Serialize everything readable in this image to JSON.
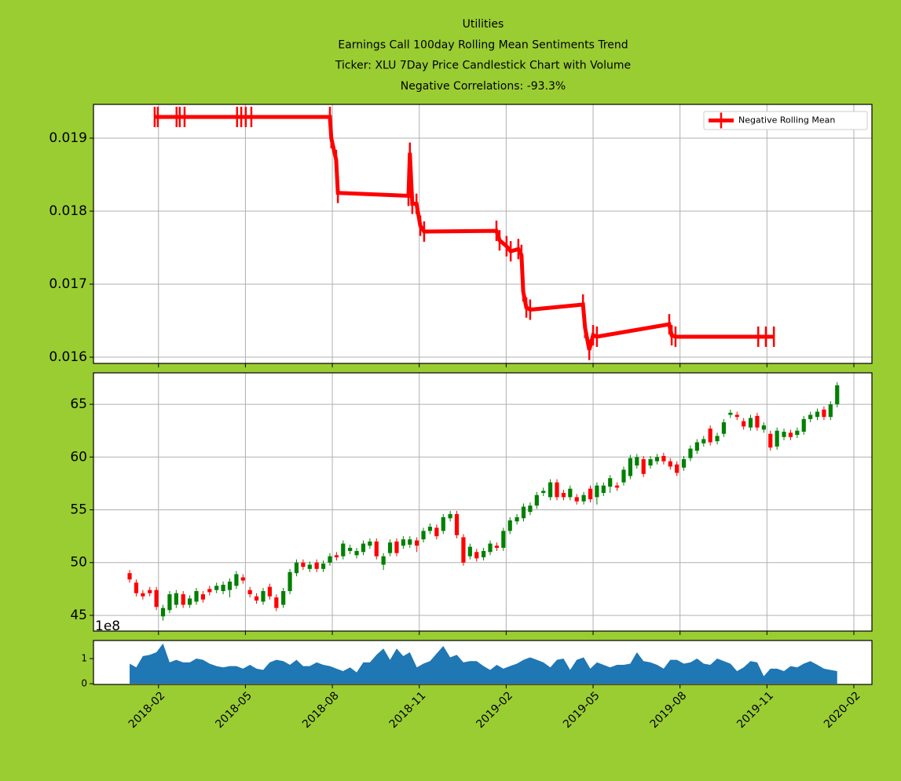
{
  "chart_data": [
    {
      "type": "line",
      "title": [
        "Utilities",
        "Earnings Call 100day Rolling Mean Sentiments Trend",
        "Ticker: XLU      7Day Price Candlestick Chart with Volume",
        "Negative Correlations: -93.3%"
      ],
      "series": [
        {
          "name": "Negative Rolling Mean",
          "color": "red",
          "x": [
            2018.072,
            2018.081,
            2018.135,
            2018.144,
            2018.158,
            2018.309,
            2018.321,
            2018.334,
            2018.35,
            2018.576,
            2018.58,
            2018.594,
            2018.599,
            2018.802,
            2018.806,
            2018.813,
            2018.825,
            2018.836,
            2018.847,
            2019.055,
            2019.064,
            2019.084,
            2019.096,
            2019.118,
            2019.127,
            2019.132,
            2019.141,
            2019.152,
            2019.304,
            2019.31,
            2019.322,
            2019.333,
            2019.344,
            2019.552,
            2019.559,
            2019.57,
            2019.808,
            2019.83,
            2019.853
          ],
          "values": [
            0.01929,
            0.01929,
            0.01929,
            0.01929,
            0.01929,
            0.01929,
            0.01929,
            0.01929,
            0.01929,
            0.01929,
            0.019,
            0.0187,
            0.01825,
            0.01821,
            0.0188,
            0.0181,
            0.0181,
            0.0178,
            0.01772,
            0.01773,
            0.0176,
            0.01752,
            0.01745,
            0.01748,
            0.0174,
            0.0169,
            0.01668,
            0.01665,
            0.01672,
            0.0164,
            0.0161,
            0.0163,
            0.01628,
            0.01645,
            0.0163,
            0.01628,
            0.01628,
            0.01628,
            0.01628
          ]
        }
      ],
      "ylim": [
        0.015914,
        0.019462
      ],
      "yticks": [
        0.016,
        0.017,
        0.018,
        0.019
      ],
      "grid": true,
      "legend": "upper right"
    },
    {
      "type": "candlestick",
      "x": [
        2018.0,
        2018.019,
        2018.038,
        2018.058,
        2018.077,
        2018.096,
        2018.115,
        2018.134,
        2018.154,
        2018.173,
        2018.192,
        2018.211,
        2018.23,
        2018.25,
        2018.269,
        2018.288,
        2018.307,
        2018.326,
        2018.346,
        2018.365,
        2018.384,
        2018.403,
        2018.422,
        2018.442,
        2018.461,
        2018.48,
        2018.499,
        2018.518,
        2018.538,
        2018.557,
        2018.576,
        2018.595,
        2018.614,
        2018.634,
        2018.653,
        2018.672,
        2018.691,
        2018.71,
        2018.73,
        2018.749,
        2018.768,
        2018.787,
        2018.806,
        2018.826,
        2018.845,
        2018.864,
        2018.883,
        2018.902,
        2018.922,
        2018.941,
        2018.96,
        2018.979,
        2018.998,
        2019.018,
        2019.037,
        2019.056,
        2019.075,
        2019.094,
        2019.114,
        2019.133,
        2019.152,
        2019.171,
        2019.19,
        2019.21,
        2019.229,
        2019.248,
        2019.267,
        2019.286,
        2019.306,
        2019.325,
        2019.344,
        2019.363,
        2019.382,
        2019.402,
        2019.421,
        2019.44,
        2019.459,
        2019.478,
        2019.498,
        2019.517,
        2019.536,
        2019.555,
        2019.574,
        2019.594,
        2019.613,
        2019.632,
        2019.651,
        2019.67,
        2019.69,
        2019.709,
        2019.728,
        2019.747,
        2019.766,
        2019.786,
        2019.805,
        2019.824,
        2019.843,
        2019.862,
        2019.882,
        2019.901,
        2019.92,
        2019.939,
        2019.958,
        2019.978,
        2019.997,
        2020.016,
        2020.035
      ],
      "open": [
        49,
        48.1,
        47.1,
        47.4,
        47.4,
        44.9,
        45.5,
        46,
        47,
        46,
        46.3,
        47,
        47.5,
        47.4,
        47.3,
        47.4,
        47.8,
        48.6,
        47.4,
        46.8,
        46.3,
        47.7,
        46.7,
        46,
        47.3,
        49,
        50,
        49.4,
        50,
        49.4,
        50,
        50.7,
        50.6,
        51.1,
        50.7,
        51,
        51.6,
        52,
        49.8,
        50.9,
        52,
        51.6,
        51.7,
        52.1,
        52.2,
        53,
        53.3,
        53,
        54.2,
        54.6,
        52.4,
        50.6,
        51,
        50.5,
        51,
        51.6,
        51.4,
        53,
        53.9,
        54.2,
        54.8,
        55.4,
        56.6,
        56.2,
        57.6,
        56.6,
        56.2,
        56.2,
        55.8,
        57,
        56.2,
        56.6,
        57.2,
        57.3,
        57.6,
        58.2,
        59.2,
        59.8,
        59.2,
        59.6,
        60.1,
        59.6,
        59.3,
        59,
        59.9,
        60.6,
        61.3,
        62.7,
        61.5,
        62.2,
        64,
        64,
        63.4,
        62.8,
        63.9,
        62.6,
        62.2,
        61,
        61.9,
        62.3,
        62.1,
        62.4,
        63.6,
        63.8,
        64.5,
        63.8,
        65
      ],
      "high": [
        49.3,
        48.4,
        47.4,
        47.7,
        47.7,
        46.0,
        47.3,
        47.4,
        47.3,
        46.9,
        47.6,
        47.3,
        47.8,
        48.1,
        48.2,
        48.5,
        49.2,
        48.9,
        47.7,
        47.1,
        47.6,
        48.0,
        47.0,
        47.6,
        49.4,
        50.3,
        50.3,
        50.1,
        50.3,
        50.2,
        50.9,
        51.0,
        52.1,
        51.7,
        51.4,
        52.1,
        52.3,
        52.3,
        50.9,
        52.2,
        52.3,
        52.5,
        52.5,
        52.4,
        53.3,
        53.7,
        53.6,
        54.6,
        54.9,
        54.9,
        52.7,
        51.8,
        51.3,
        51.4,
        52.1,
        51.9,
        53.3,
        54.3,
        54.6,
        55.6,
        55.7,
        56.7,
        57.1,
        57.9,
        57.9,
        56.9,
        57.3,
        56.5,
        56.7,
        57.3,
        57.6,
        57.6,
        58.3,
        57.6,
        59.1,
        60.2,
        60.3,
        60.1,
        60.1,
        60.3,
        60.4,
        59.9,
        59.6,
        60.1,
        61.1,
        61.7,
        62.0,
        63.0,
        62.3,
        63.6,
        64.5,
        64.3,
        63.7,
        64.0,
        64.2,
        63.3,
        62.5,
        62.8,
        62.7,
        62.6,
        62.8,
        63.9,
        64.3,
        64.6,
        64.8,
        65.3,
        67.1
      ],
      "low": [
        48.1,
        46.8,
        46.5,
        46.8,
        45.5,
        44.5,
        45.2,
        45.7,
        45.7,
        45.7,
        46.0,
        46.2,
        46.9,
        47.1,
        47.0,
        46.7,
        47.5,
        48.0,
        46.7,
        46.1,
        46.0,
        46.5,
        45.4,
        45.7,
        47.0,
        48.7,
        49.3,
        49.1,
        49.1,
        49.1,
        49.7,
        50.2,
        50.3,
        50.8,
        50.4,
        50.7,
        51.3,
        50.3,
        49.3,
        50.6,
        50.6,
        51.3,
        51.4,
        51.0,
        51.9,
        52.7,
        52.2,
        52.7,
        53.9,
        52.3,
        49.7,
        50.3,
        50.1,
        50.2,
        50.7,
        51.1,
        51.1,
        52.7,
        53.6,
        53.9,
        54.5,
        55.1,
        56.3,
        55.9,
        55.9,
        55.9,
        55.9,
        55.5,
        55.5,
        55.7,
        55.5,
        56.3,
        56.6,
        56.8,
        57.3,
        57.9,
        58.9,
        58.1,
        58.9,
        59.3,
        59.3,
        58.8,
        58.2,
        58.7,
        59.6,
        60.3,
        61.0,
        61.1,
        61.2,
        61.9,
        63.7,
        63.5,
        62.6,
        62.5,
        62.5,
        62.3,
        60.6,
        60.7,
        61.6,
        61.6,
        61.8,
        62.1,
        63.3,
        63.5,
        63.5,
        63.5,
        64.7
      ],
      "close": [
        48.4,
        47.1,
        46.8,
        47.1,
        45.8,
        45.7,
        47,
        47.1,
        46,
        46.6,
        47.3,
        46.5,
        47.2,
        47.8,
        47.9,
        48.2,
        48.9,
        48.3,
        47,
        46.4,
        47.3,
        46.8,
        45.7,
        47.3,
        49.1,
        50,
        49.6,
        49.8,
        49.4,
        49.9,
        50.6,
        50.5,
        51.8,
        51.4,
        51.1,
        51.8,
        52,
        50.6,
        50.6,
        51.9,
        50.9,
        52.2,
        52.2,
        51.6,
        53,
        53.4,
        52.5,
        54.3,
        54.6,
        52.6,
        50,
        51.5,
        50.4,
        51.1,
        51.8,
        51.4,
        53,
        54,
        54.3,
        55.3,
        55.4,
        56.4,
        56.8,
        57.6,
        56.2,
        56.2,
        57,
        55.8,
        56.4,
        56,
        57.3,
        57.3,
        58,
        57.1,
        58.8,
        59.9,
        60,
        58.4,
        59.8,
        60,
        59.6,
        59.1,
        58.5,
        59.8,
        60.8,
        61.4,
        61.7,
        61.4,
        62,
        63.3,
        64.2,
        63.8,
        62.9,
        63.7,
        62.8,
        63,
        60.9,
        62.5,
        62.4,
        61.9,
        62.5,
        63.6,
        64,
        64.3,
        63.8,
        65,
        66.8
      ],
      "up_color": "green",
      "down_color": "red",
      "ylim": [
        43.51,
        67.98
      ],
      "yticks": [
        45,
        50,
        55,
        60,
        65
      ],
      "grid": true
    },
    {
      "type": "area",
      "x": [
        2018.0,
        2018.019,
        2018.038,
        2018.058,
        2018.077,
        2018.096,
        2018.115,
        2018.134,
        2018.154,
        2018.173,
        2018.192,
        2018.211,
        2018.23,
        2018.25,
        2018.269,
        2018.288,
        2018.307,
        2018.326,
        2018.346,
        2018.365,
        2018.384,
        2018.403,
        2018.422,
        2018.442,
        2018.461,
        2018.48,
        2018.499,
        2018.518,
        2018.538,
        2018.557,
        2018.576,
        2018.595,
        2018.614,
        2018.634,
        2018.653,
        2018.672,
        2018.691,
        2018.71,
        2018.73,
        2018.749,
        2018.768,
        2018.787,
        2018.806,
        2018.826,
        2018.845,
        2018.864,
        2018.883,
        2018.902,
        2018.922,
        2018.941,
        2018.96,
        2018.979,
        2018.998,
        2019.018,
        2019.037,
        2019.056,
        2019.075,
        2019.094,
        2019.114,
        2019.133,
        2019.152,
        2019.171,
        2019.19,
        2019.21,
        2019.229,
        2019.248,
        2019.267,
        2019.286,
        2019.306,
        2019.325,
        2019.344,
        2019.363,
        2019.382,
        2019.402,
        2019.421,
        2019.44,
        2019.459,
        2019.478,
        2019.498,
        2019.517,
        2019.536,
        2019.555,
        2019.574,
        2019.594,
        2019.613,
        2019.632,
        2019.651,
        2019.67,
        2019.69,
        2019.709,
        2019.728,
        2019.747,
        2019.766,
        2019.786,
        2019.805,
        2019.824,
        2019.843,
        2019.862,
        2019.882,
        2019.901,
        2019.92,
        2019.939,
        2019.958,
        2019.978,
        2019.997,
        2020.016,
        2020.035
      ],
      "values": [
        0.8,
        0.65,
        1.1,
        1.15,
        1.25,
        1.6,
        0.85,
        0.95,
        0.85,
        0.85,
        1.0,
        0.95,
        0.8,
        0.7,
        0.65,
        0.7,
        0.7,
        0.6,
        0.75,
        0.6,
        0.55,
        0.85,
        0.95,
        0.9,
        0.75,
        0.95,
        0.7,
        0.7,
        0.85,
        0.75,
        0.7,
        0.6,
        0.5,
        0.65,
        0.45,
        0.85,
        0.85,
        1.15,
        1.4,
        0.95,
        1.4,
        1.1,
        1.25,
        0.65,
        0.8,
        0.9,
        1.2,
        1.5,
        1.05,
        1.15,
        0.85,
        0.9,
        0.9,
        0.7,
        0.55,
        0.75,
        0.6,
        0.7,
        0.8,
        0.95,
        1.05,
        0.95,
        0.85,
        0.65,
        0.95,
        1.0,
        0.55,
        0.95,
        1.05,
        0.6,
        0.85,
        0.75,
        0.65,
        0.75,
        0.75,
        0.8,
        1.25,
        0.9,
        0.85,
        0.75,
        0.6,
        0.95,
        0.95,
        0.8,
        0.85,
        1.0,
        0.8,
        0.75,
        1.0,
        0.9,
        0.8,
        0.5,
        0.65,
        0.9,
        0.85,
        0.3,
        0.6,
        0.6,
        0.5,
        0.7,
        0.65,
        0.8,
        0.9,
        0.75,
        0.6,
        0.55,
        0.5
      ],
      "color": "#1f77b4",
      "offset_label": "1e8",
      "ylim": [
        -0.03,
        1.72
      ],
      "yticks": [
        0,
        1
      ],
      "grid": false,
      "xlim": [
        2017.896,
        2020.135
      ],
      "xticks": [
        {
          "value": 2018.083,
          "label": "2018-02"
        },
        {
          "value": 2018.333,
          "label": "2018-05"
        },
        {
          "value": 2018.583,
          "label": "2018-08"
        },
        {
          "value": 2018.833,
          "label": "2018-11"
        },
        {
          "value": 2019.083,
          "label": "2019-02"
        },
        {
          "value": 2019.333,
          "label": "2019-05"
        },
        {
          "value": 2019.583,
          "label": "2019-08"
        },
        {
          "value": 2019.833,
          "label": "2019-11"
        },
        {
          "value": 2020.083,
          "label": "2020-02"
        }
      ]
    }
  ]
}
